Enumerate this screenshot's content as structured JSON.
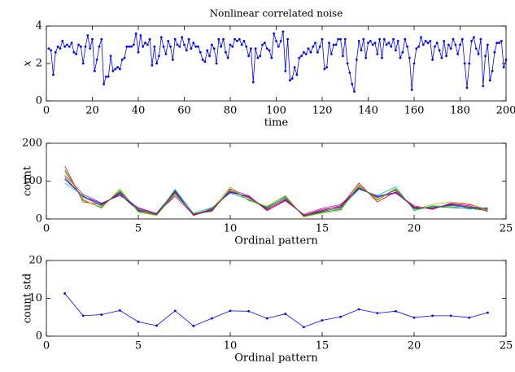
{
  "chart_data": [
    {
      "type": "line",
      "title": "Nonlinear correlated noise",
      "xlabel": "time",
      "ylabel": "x",
      "ylabel_italic": true,
      "marker": true,
      "grid": false,
      "xlim": [
        0,
        200
      ],
      "xticks": [
        0,
        20,
        40,
        60,
        80,
        100,
        120,
        140,
        160,
        180,
        200
      ],
      "ylim": [
        0,
        4
      ],
      "yticks": [
        0,
        2,
        4
      ],
      "x": [
        1,
        2,
        3,
        4,
        5,
        6,
        7,
        8,
        9,
        10,
        11,
        12,
        13,
        14,
        15,
        16,
        17,
        18,
        19,
        20,
        21,
        22,
        23,
        24,
        25,
        26,
        27,
        28,
        29,
        30,
        31,
        32,
        33,
        34,
        35,
        36,
        37,
        38,
        39,
        40,
        41,
        42,
        43,
        44,
        45,
        46,
        47,
        48,
        49,
        50,
        51,
        52,
        53,
        54,
        55,
        56,
        57,
        58,
        59,
        60,
        61,
        62,
        63,
        64,
        65,
        66,
        67,
        68,
        69,
        70,
        71,
        72,
        73,
        74,
        75,
        76,
        77,
        78,
        79,
        80,
        81,
        82,
        83,
        84,
        85,
        86,
        87,
        88,
        89,
        90,
        91,
        92,
        93,
        94,
        95,
        96,
        97,
        98,
        99,
        100,
        101,
        102,
        103,
        104,
        105,
        106,
        107,
        108,
        109,
        110,
        111,
        112,
        113,
        114,
        115,
        116,
        117,
        118,
        119,
        120,
        121,
        122,
        123,
        124,
        125,
        126,
        127,
        128,
        129,
        130,
        131,
        132,
        133,
        134,
        135,
        136,
        137,
        138,
        139,
        140,
        141,
        142,
        143,
        144,
        145,
        146,
        147,
        148,
        149,
        150,
        151,
        152,
        153,
        154,
        155,
        156,
        157,
        158,
        159,
        160,
        161,
        162,
        163,
        164,
        165,
        166,
        167,
        168,
        169,
        170,
        171,
        172,
        173,
        174,
        175,
        176,
        177,
        178,
        179,
        180,
        181,
        182,
        183,
        184,
        185,
        186,
        187,
        188,
        189,
        190,
        191,
        192,
        193,
        194,
        195,
        196,
        197,
        198,
        199,
        200
      ],
      "series": [
        {
          "color": "#0000ff",
          "values": [
            2.8,
            2.7,
            1.4,
            2.6,
            2.9,
            2.8,
            3.2,
            2.9,
            3.0,
            2.9,
            3.1,
            2.6,
            2.5,
            3.0,
            2.9,
            2.0,
            2.9,
            3.5,
            2.8,
            3.3,
            1.6,
            2.2,
            2.9,
            3.3,
            0.9,
            1.3,
            1.3,
            2.4,
            1.6,
            1.7,
            1.8,
            1.7,
            2.2,
            2.3,
            2.9,
            2.9,
            2.9,
            3.0,
            3.6,
            2.6,
            3.5,
            2.9,
            3.1,
            3.0,
            3.3,
            1.9,
            2.9,
            2.0,
            2.4,
            3.4,
            2.9,
            2.5,
            3.2,
            2.9,
            2.2,
            3.3,
            3.0,
            2.9,
            3.4,
            3.0,
            2.7,
            3.3,
            2.8,
            3.1,
            2.9,
            2.9,
            2.6,
            2.2,
            2.1,
            2.7,
            2.4,
            3.0,
            2.8,
            2.0,
            3.3,
            2.9,
            3.3,
            2.6,
            2.3,
            3.0,
            2.9,
            3.3,
            3.2,
            3.3,
            3.0,
            3.2,
            2.9,
            2.4,
            2.8,
            1.0,
            2.8,
            2.3,
            2.4,
            3.0,
            3.1,
            2.8,
            2.7,
            2.3,
            3.6,
            3.2,
            2.9,
            3.2,
            3.7,
            1.6,
            3.3,
            1.1,
            1.2,
            1.8,
            1.4,
            2.3,
            2.4,
            2.6,
            2.5,
            2.8,
            2.6,
            2.9,
            3.1,
            2.6,
            2.9,
            3.3,
            1.7,
            1.8,
            3.1,
            2.5,
            3.0,
            3.0,
            3.3,
            3.3,
            2.4,
            3.3,
            2.0,
            1.5,
            0.9,
            0.5,
            2.2,
            3.2,
            2.7,
            3.3,
            2.3,
            3.1,
            3.2,
            3.0,
            3.1,
            2.5,
            3.3,
            2.3,
            3.3,
            3.0,
            3.1,
            2.9,
            3.3,
            2.7,
            3.2,
            2.3,
            2.6,
            3.3,
            2.9,
            2.3,
            0.6,
            2.0,
            2.8,
            2.9,
            3.4,
            3.0,
            3.2,
            3.1,
            3.2,
            2.2,
            2.9,
            3.1,
            2.7,
            2.3,
            3.2,
            2.4,
            3.0,
            2.8,
            3.3,
            3.0,
            2.5,
            3.0,
            3.3,
            2.0,
            0.7,
            2.0,
            3.2,
            3.4,
            2.8,
            2.5,
            3.3,
            0.8,
            2.4,
            3.0,
            1.1,
            1.6,
            2.6,
            3.1,
            3.1,
            3.2,
            1.8,
            2.2
          ]
        }
      ]
    },
    {
      "type": "line",
      "xlabel": "Ordinal pattern",
      "ylabel": "count",
      "marker": false,
      "grid": false,
      "xlim": [
        0,
        25
      ],
      "xticks": [
        0,
        5,
        10,
        15,
        20,
        25
      ],
      "ylim": [
        0,
        200
      ],
      "yticks": [
        0,
        100,
        200
      ],
      "x": [
        1,
        2,
        3,
        4,
        5,
        6,
        7,
        8,
        9,
        10,
        11,
        12,
        13,
        14,
        15,
        16,
        17,
        18,
        19,
        20,
        21,
        22,
        23,
        24
      ],
      "series": [
        {
          "color": "#0000ff",
          "values": [
            105,
            60,
            40,
            65,
            22,
            15,
            75,
            10,
            28,
            70,
            60,
            25,
            50,
            10,
            22,
            35,
            80,
            60,
            70,
            30,
            28,
            38,
            32,
            28
          ]
        },
        {
          "color": "#008000",
          "values": [
            130,
            50,
            30,
            75,
            20,
            10,
            65,
            14,
            20,
            80,
            50,
            30,
            60,
            6,
            18,
            25,
            90,
            50,
            80,
            25,
            33,
            30,
            28,
            22
          ]
        },
        {
          "color": "#ff0000",
          "values": [
            140,
            45,
            38,
            68,
            28,
            13,
            72,
            9,
            24,
            72,
            58,
            24,
            52,
            9,
            25,
            32,
            95,
            45,
            72,
            32,
            27,
            40,
            35,
            20
          ]
        },
        {
          "color": "#00bfbf",
          "values": [
            95,
            62,
            33,
            72,
            26,
            11,
            78,
            15,
            30,
            68,
            52,
            32,
            58,
            7,
            15,
            28,
            78,
            62,
            85,
            22,
            35,
            33,
            26,
            30
          ]
        },
        {
          "color": "#bf00bf",
          "values": [
            115,
            65,
            42,
            62,
            30,
            14,
            60,
            11,
            22,
            78,
            62,
            22,
            48,
            12,
            28,
            38,
            82,
            58,
            68,
            35,
            25,
            42,
            38,
            26
          ]
        },
        {
          "color": "#bfbf00",
          "values": [
            125,
            52,
            28,
            80,
            18,
            9,
            68,
            13,
            26,
            85,
            48,
            34,
            62,
            5,
            16,
            22,
            88,
            52,
            78,
            26,
            38,
            45,
            40,
            24
          ]
        },
        {
          "color": "#404040",
          "values": [
            110,
            58,
            36,
            70,
            24,
            12,
            70,
            12,
            25,
            74,
            56,
            28,
            55,
            8,
            20,
            30,
            84,
            56,
            76,
            28,
            30,
            36,
            30,
            25
          ]
        }
      ]
    },
    {
      "type": "line",
      "xlabel": "Ordinal pattern",
      "ylabel": "count std",
      "marker": true,
      "grid": false,
      "xlim": [
        0,
        25
      ],
      "xticks": [
        0,
        5,
        10,
        15,
        20,
        25
      ],
      "ylim": [
        0,
        20
      ],
      "yticks": [
        0,
        10,
        20
      ],
      "x": [
        1,
        2,
        3,
        4,
        5,
        6,
        7,
        8,
        9,
        10,
        11,
        12,
        13,
        14,
        15,
        16,
        17,
        18,
        19,
        20,
        21,
        22,
        23,
        24
      ],
      "series": [
        {
          "color": "#0000ff",
          "values": [
            11.3,
            5.4,
            5.7,
            6.8,
            3.8,
            2.8,
            6.7,
            2.7,
            4.7,
            6.7,
            6.6,
            4.7,
            5.9,
            2.4,
            4.2,
            5.1,
            7.1,
            6.1,
            6.6,
            4.9,
            5.4,
            5.4,
            4.9,
            6.2
          ]
        }
      ]
    }
  ]
}
